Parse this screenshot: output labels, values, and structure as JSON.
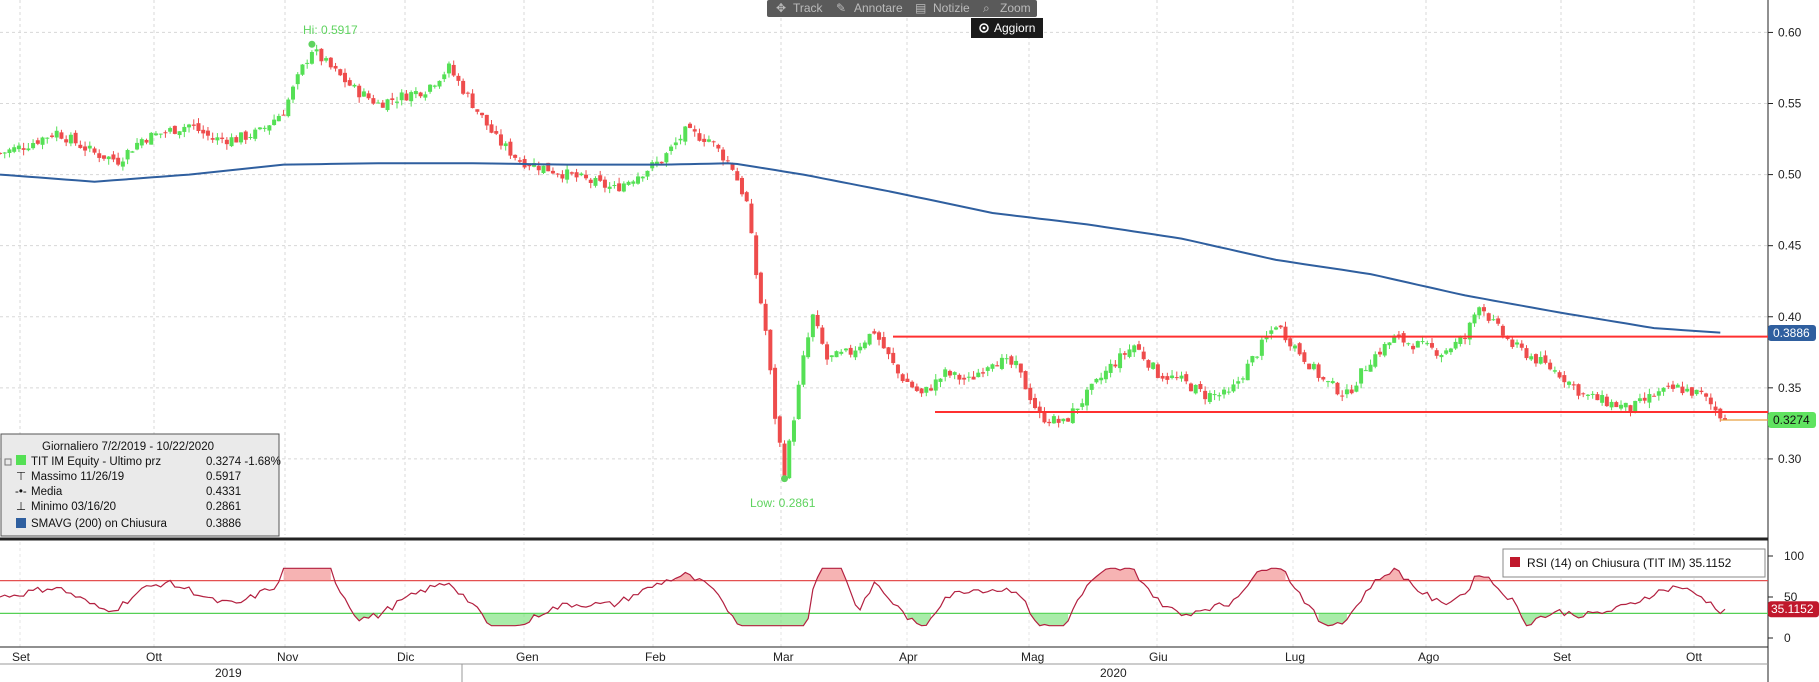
{
  "toolbar": {
    "track_label": "Track",
    "annotate_label": "Annotare",
    "news_label": "Notizie",
    "zoom_label": "Zoom",
    "refresh_label": "Aggiorn"
  },
  "legend": {
    "title": "Giornaliero 7/2/2019 - 10/22/2020",
    "rows": [
      {
        "label": "TIT IM Equity - Ultimo prz",
        "value": "0.3274  -1.68%"
      },
      {
        "label": "Massimo 11/26/19",
        "value": "0.5917"
      },
      {
        "label": "Media",
        "value": "0.4331"
      },
      {
        "label": "Minimo 03/16/20",
        "value": "0.2861"
      },
      {
        "label": "SMAVG (200)  on Chiusura",
        "value": "0.3886"
      }
    ]
  },
  "annotations": {
    "hi": "Hi: 0.5917",
    "low": "Low: 0.2861"
  },
  "price_tags": {
    "sma": "0.3886",
    "last": "0.3274",
    "rsi": "35.1152"
  },
  "rsi_legend": "RSI (14)  on Chiusura (TIT IM) 35.1152",
  "colors": {
    "up": "#55e055",
    "down": "#ee4c4c",
    "sma": "#2f5f9f",
    "resistance": "#ff3030",
    "rsi": "#b32040",
    "rsi_upper": "#e45050",
    "rsi_lower": "#55d055",
    "sma_tag": "#2f5f9f",
    "last_tag": "#5fe35f",
    "rsi_tag": "#c0182c"
  },
  "chart_data": [
    {
      "type": "candlestick",
      "ylim": [
        0.25,
        0.62
      ],
      "yticks": [
        "0.30",
        "0.35",
        "0.40",
        "0.45",
        "0.50",
        "0.55",
        "0.60"
      ],
      "x_months": [
        "Set",
        "Ott",
        "Nov",
        "Dic",
        "Gen",
        "Feb",
        "Mar",
        "Apr",
        "Mag",
        "Giu",
        "Lug",
        "Ago",
        "Set",
        "Ott"
      ],
      "x_years": [
        "2019",
        "2020"
      ],
      "close_path": [
        [
          0,
          0.515
        ],
        [
          5,
          0.52
        ],
        [
          12,
          0.53
        ],
        [
          20,
          0.515
        ],
        [
          25,
          0.51
        ],
        [
          30,
          0.525
        ],
        [
          35,
          0.53
        ],
        [
          40,
          0.535
        ],
        [
          45,
          0.525
        ],
        [
          50,
          0.525
        ],
        [
          55,
          0.53
        ],
        [
          60,
          0.545
        ],
        [
          64,
          0.575
        ],
        [
          66,
          0.588
        ],
        [
          70,
          0.575
        ],
        [
          75,
          0.56
        ],
        [
          80,
          0.55
        ],
        [
          85,
          0.555
        ],
        [
          90,
          0.56
        ],
        [
          95,
          0.575
        ],
        [
          100,
          0.55
        ],
        [
          105,
          0.525
        ],
        [
          110,
          0.51
        ],
        [
          115,
          0.505
        ],
        [
          120,
          0.5
        ],
        [
          125,
          0.495
        ],
        [
          130,
          0.49
        ],
        [
          135,
          0.5
        ],
        [
          140,
          0.51
        ],
        [
          145,
          0.53
        ],
        [
          150,
          0.525
        ],
        [
          155,
          0.505
        ],
        [
          158,
          0.48
        ],
        [
          160,
          0.43
        ],
        [
          162,
          0.39
        ],
        [
          164,
          0.33
        ],
        [
          166,
          0.29
        ],
        [
          168,
          0.33
        ],
        [
          170,
          0.37
        ],
        [
          172,
          0.4
        ],
        [
          175,
          0.37
        ],
        [
          180,
          0.375
        ],
        [
          185,
          0.39
        ],
        [
          190,
          0.36
        ],
        [
          195,
          0.345
        ],
        [
          200,
          0.36
        ],
        [
          205,
          0.355
        ],
        [
          210,
          0.37
        ],
        [
          215,
          0.365
        ],
        [
          220,
          0.33
        ],
        [
          225,
          0.325
        ],
        [
          230,
          0.345
        ],
        [
          235,
          0.365
        ],
        [
          240,
          0.38
        ],
        [
          245,
          0.36
        ],
        [
          250,
          0.355
        ],
        [
          255,
          0.345
        ],
        [
          260,
          0.345
        ],
        [
          265,
          0.37
        ],
        [
          270,
          0.395
        ],
        [
          275,
          0.375
        ],
        [
          280,
          0.355
        ],
        [
          285,
          0.345
        ],
        [
          290,
          0.37
        ],
        [
          295,
          0.385
        ],
        [
          300,
          0.38
        ],
        [
          305,
          0.375
        ],
        [
          310,
          0.385
        ],
        [
          313,
          0.41
        ],
        [
          316,
          0.395
        ],
        [
          320,
          0.38
        ],
        [
          325,
          0.37
        ],
        [
          330,
          0.36
        ],
        [
          335,
          0.345
        ],
        [
          340,
          0.34
        ],
        [
          345,
          0.335
        ],
        [
          350,
          0.345
        ],
        [
          355,
          0.35
        ],
        [
          360,
          0.345
        ],
        [
          362,
          0.338
        ],
        [
          365,
          0.327
        ]
      ],
      "sma_path": [
        [
          0,
          0.5
        ],
        [
          20,
          0.495
        ],
        [
          40,
          0.5
        ],
        [
          60,
          0.507
        ],
        [
          80,
          0.508
        ],
        [
          100,
          0.508
        ],
        [
          120,
          0.507
        ],
        [
          140,
          0.507
        ],
        [
          155,
          0.508
        ],
        [
          170,
          0.5
        ],
        [
          190,
          0.487
        ],
        [
          210,
          0.473
        ],
        [
          230,
          0.465
        ],
        [
          250,
          0.455
        ],
        [
          270,
          0.44
        ],
        [
          290,
          0.43
        ],
        [
          310,
          0.415
        ],
        [
          330,
          0.403
        ],
        [
          350,
          0.392
        ],
        [
          365,
          0.3886
        ]
      ],
      "resistance": 0.386,
      "support": 0.333,
      "hi": 0.5917,
      "low": 0.2861,
      "last": 0.3274,
      "sma_last": 0.3886
    },
    {
      "type": "line",
      "series": [
        {
          "name": "RSI (14)",
          "values": []
        }
      ],
      "ylim": [
        0,
        100
      ],
      "yticks": [
        "0",
        "50",
        "100"
      ],
      "levels": [
        70,
        30
      ],
      "last": 35.1152
    }
  ]
}
